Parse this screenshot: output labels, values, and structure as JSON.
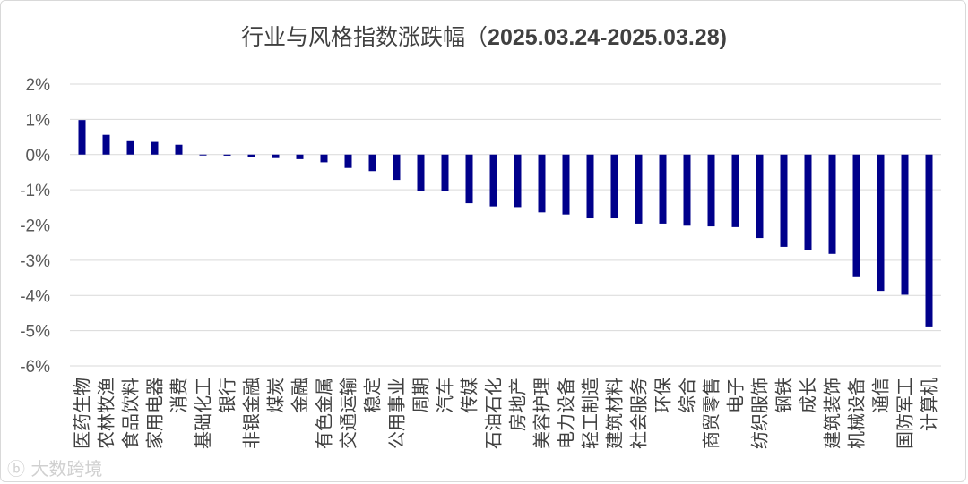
{
  "title": {
    "main": "行业与风格指数涨跌幅（",
    "date_range": "2025.03.24-2025.03.28)"
  },
  "watermark": "大数跨境",
  "colors": {
    "bar": "#00008b",
    "grid": "#d9d9d9",
    "tick": "#595959"
  },
  "chart_data": {
    "type": "bar",
    "title": "行业与风格指数涨跌幅（2025.03.24-2025.03.28)",
    "xlabel": "",
    "ylabel": "",
    "ylim": [
      -6,
      2
    ],
    "y_ticks": [
      "2%",
      "1%",
      "0%",
      "-1%",
      "-2%",
      "-3%",
      "-4%",
      "-5%",
      "-6%"
    ],
    "grid": true,
    "unit": "%",
    "categories": [
      "医药生物",
      "农林牧渔",
      "食品饮料",
      "家用电器",
      "消费",
      "基础化工",
      "银行",
      "非银金融",
      "煤炭",
      "金融",
      "有色金属",
      "交通运输",
      "稳定",
      "公用事业",
      "周期",
      "汽车",
      "传媒",
      "石油石化",
      "房地产",
      "美容护理",
      "电力设备",
      "轻工制造",
      "建筑材料",
      "社会服务",
      "环保",
      "综合",
      "商贸零售",
      "电子",
      "纺织服饰",
      "钢铁",
      "成长",
      "建筑装饰",
      "机械设备",
      "通信",
      "国防军工",
      "计算机"
    ],
    "values": [
      0.98,
      0.56,
      0.38,
      0.36,
      0.28,
      -0.01,
      -0.03,
      -0.07,
      -0.1,
      -0.13,
      -0.22,
      -0.38,
      -0.47,
      -0.72,
      -1.03,
      -1.04,
      -1.38,
      -1.47,
      -1.49,
      -1.64,
      -1.7,
      -1.81,
      -1.81,
      -1.96,
      -1.96,
      -2.02,
      -2.04,
      -2.06,
      -2.37,
      -2.62,
      -2.7,
      -2.82,
      -3.48,
      -3.87,
      -3.98,
      -4.88
    ]
  }
}
